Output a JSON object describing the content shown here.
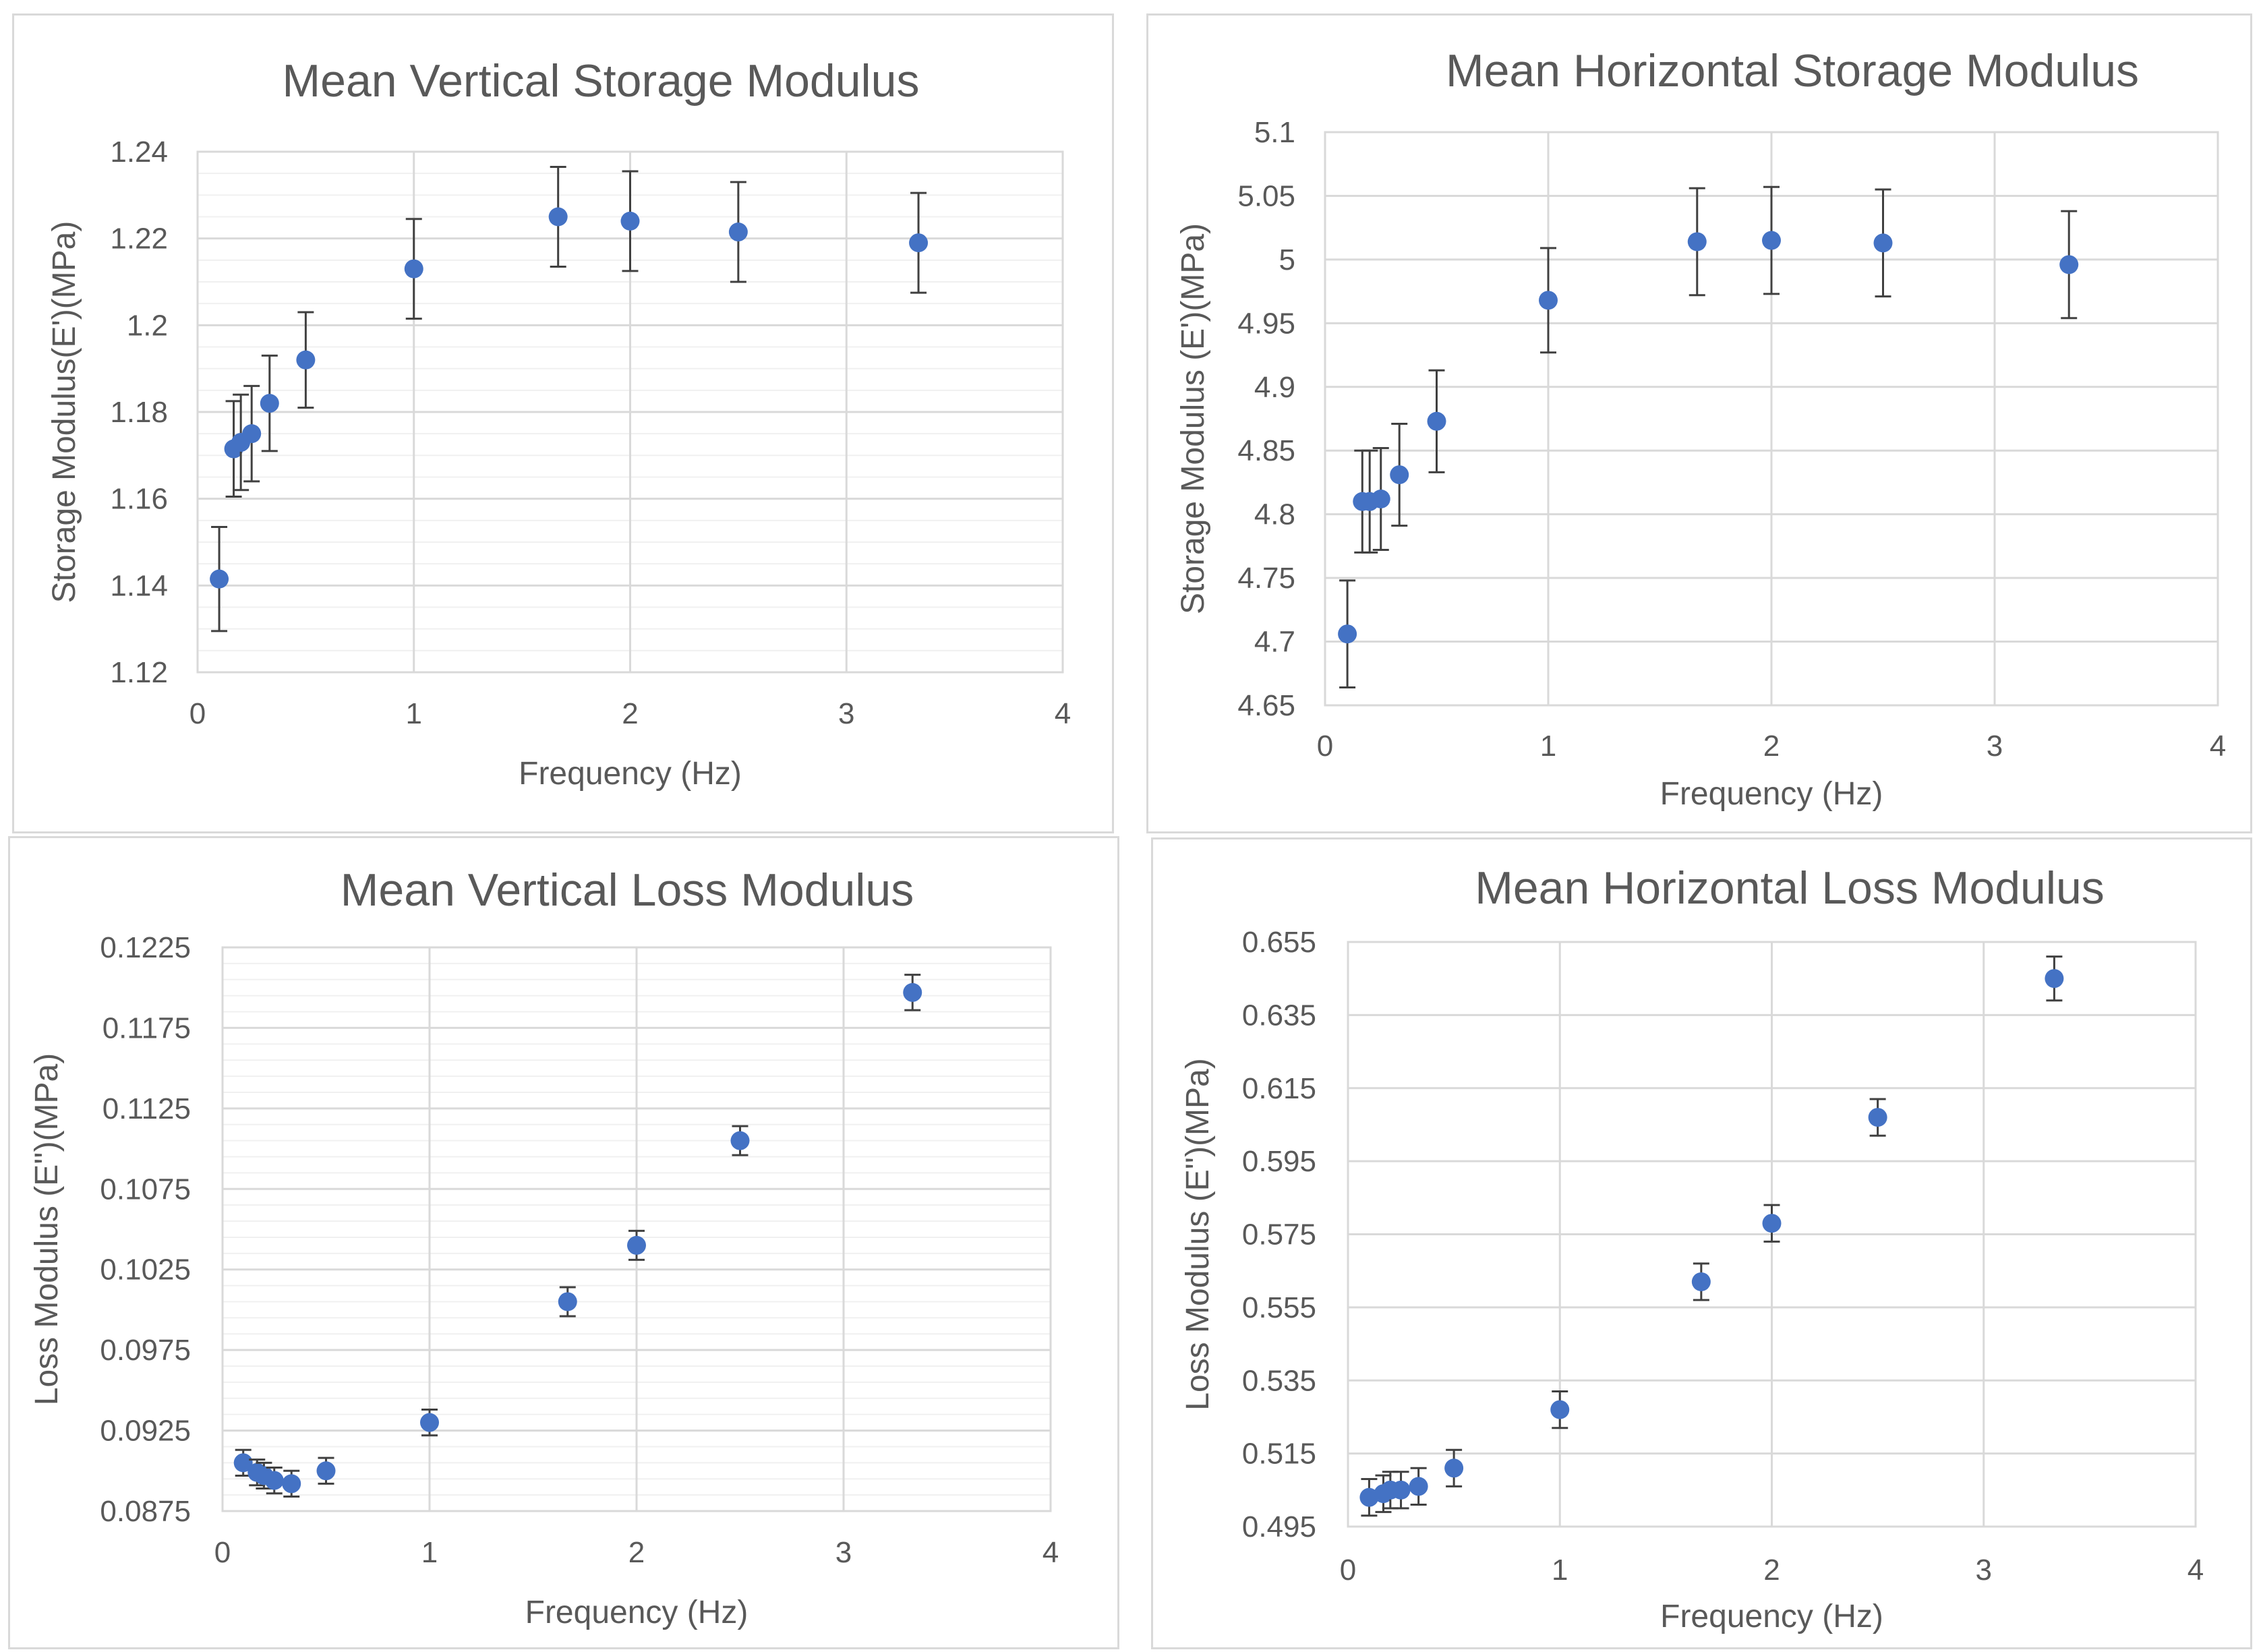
{
  "chart_data": [
    {
      "type": "scatter",
      "title": "Mean Vertical Storage Modulus",
      "xlabel": "Frequency (Hz)",
      "ylabel": "Storage Modulus(E')(MPa)",
      "xlim": [
        0,
        4
      ],
      "ylim": [
        1.12,
        1.24
      ],
      "xticks": [
        0,
        1,
        2,
        3,
        4
      ],
      "xtick_labels": [
        "0",
        "1",
        "2",
        "3",
        "4"
      ],
      "yticks": [
        1.12,
        1.14,
        1.16,
        1.18,
        1.2,
        1.22,
        1.24
      ],
      "ytick_labels": [
        "1.12",
        "1.14",
        "1.16",
        "1.18",
        "1.2",
        "1.22",
        "1.24"
      ],
      "minor_y_step": 0.005,
      "grid": true,
      "series": [
        {
          "name": "Mean Vertical Storage Modulus",
          "color": "#4472c4",
          "x": [
            0.1,
            0.167,
            0.2,
            0.25,
            0.333,
            0.5,
            1,
            1.667,
            2,
            2.5,
            3.333
          ],
          "y": [
            1.1415,
            1.1715,
            1.173,
            1.175,
            1.182,
            1.192,
            1.213,
            1.225,
            1.224,
            1.2215,
            1.219
          ],
          "error": [
            0.012,
            0.011,
            0.011,
            0.011,
            0.011,
            0.011,
            0.0115,
            0.0115,
            0.0115,
            0.0115,
            0.0115
          ]
        }
      ]
    },
    {
      "type": "scatter",
      "title": "Mean Horizontal Storage Modulus",
      "xlabel": "Frequency (Hz)",
      "ylabel": "Storage Modulus (E')(MPa)",
      "xlim": [
        0,
        4
      ],
      "ylim": [
        4.65,
        5.1
      ],
      "xticks": [
        0,
        1,
        2,
        3,
        4
      ],
      "xtick_labels": [
        "0",
        "1",
        "2",
        "3",
        "4"
      ],
      "yticks": [
        4.65,
        4.7,
        4.75,
        4.8,
        4.85,
        4.9,
        4.95,
        5,
        5.05,
        5.1
      ],
      "ytick_labels": [
        "4.65",
        "4.7",
        "4.75",
        "4.8",
        "4.85",
        "4.9",
        "4.95",
        "5",
        "5.05",
        "5.1"
      ],
      "minor_y_step": null,
      "grid": true,
      "series": [
        {
          "name": "Mean Horizontal Storage Modulus",
          "color": "#4472c4",
          "x": [
            0.1,
            0.167,
            0.2,
            0.25,
            0.333,
            0.5,
            1,
            1.667,
            2,
            2.5,
            3.333
          ],
          "y": [
            4.706,
            4.81,
            4.81,
            4.812,
            4.831,
            4.873,
            4.968,
            5.014,
            5.015,
            5.013,
            4.996
          ],
          "error": [
            0.042,
            0.04,
            0.04,
            0.04,
            0.04,
            0.04,
            0.041,
            0.042,
            0.042,
            0.042,
            0.042
          ]
        }
      ]
    },
    {
      "type": "scatter",
      "title": "Mean Vertical Loss Modulus",
      "xlabel": "Frequency (Hz)",
      "ylabel": "Loss Modulus (E'')(MPa)",
      "xlim": [
        0,
        4
      ],
      "ylim": [
        0.0875,
        0.1225
      ],
      "xticks": [
        0,
        1,
        2,
        3,
        4
      ],
      "xtick_labels": [
        "0",
        "1",
        "2",
        "3",
        "4"
      ],
      "yticks": [
        0.0875,
        0.0925,
        0.0975,
        0.1025,
        0.1075,
        0.1125,
        0.1175,
        0.1225
      ],
      "ytick_labels": [
        "0.0875",
        "0.0925",
        "0.0975",
        "0.1025",
        "0.1075",
        "0.1125",
        "0.1175",
        "0.1225"
      ],
      "minor_y_step": 0.001,
      "grid": true,
      "series": [
        {
          "name": "Mean Vertical Loss Modulus",
          "color": "#4472c4",
          "x": [
            0.1,
            0.167,
            0.2,
            0.25,
            0.333,
            0.5,
            1,
            1.667,
            2,
            2.5,
            3.333
          ],
          "y": [
            0.0905,
            0.0899,
            0.0897,
            0.0894,
            0.0892,
            0.09,
            0.093,
            0.1005,
            0.104,
            0.1105,
            0.1197
          ],
          "error": [
            0.0008,
            0.0008,
            0.0008,
            0.0008,
            0.0008,
            0.0008,
            0.0008,
            0.0009,
            0.0009,
            0.0009,
            0.0011
          ]
        }
      ]
    },
    {
      "type": "scatter",
      "title": "Mean Horizontal Loss Modulus",
      "xlabel": "Frequency (Hz)",
      "ylabel": "Loss Modulus (E'')(MPa)",
      "xlim": [
        0,
        4
      ],
      "ylim": [
        0.495,
        0.655
      ],
      "xticks": [
        0,
        1,
        2,
        3,
        4
      ],
      "xtick_labels": [
        "0",
        "1",
        "2",
        "3",
        "4"
      ],
      "yticks": [
        0.495,
        0.515,
        0.535,
        0.555,
        0.575,
        0.595,
        0.615,
        0.635,
        0.655
      ],
      "ytick_labels": [
        "0.495",
        "0.515",
        "0.535",
        "0.555",
        "0.575",
        "0.595",
        "0.615",
        "0.635",
        "0.655"
      ],
      "minor_y_step": null,
      "grid": true,
      "series": [
        {
          "name": "Mean Horizontal Loss Modulus",
          "color": "#4472c4",
          "x": [
            0.1,
            0.167,
            0.2,
            0.25,
            0.333,
            0.5,
            1,
            1.667,
            2,
            2.5,
            3.333
          ],
          "y": [
            0.503,
            0.504,
            0.505,
            0.505,
            0.506,
            0.511,
            0.527,
            0.562,
            0.578,
            0.607,
            0.645
          ],
          "error": [
            0.005,
            0.005,
            0.005,
            0.005,
            0.005,
            0.005,
            0.005,
            0.005,
            0.005,
            0.005,
            0.006
          ]
        }
      ]
    }
  ]
}
